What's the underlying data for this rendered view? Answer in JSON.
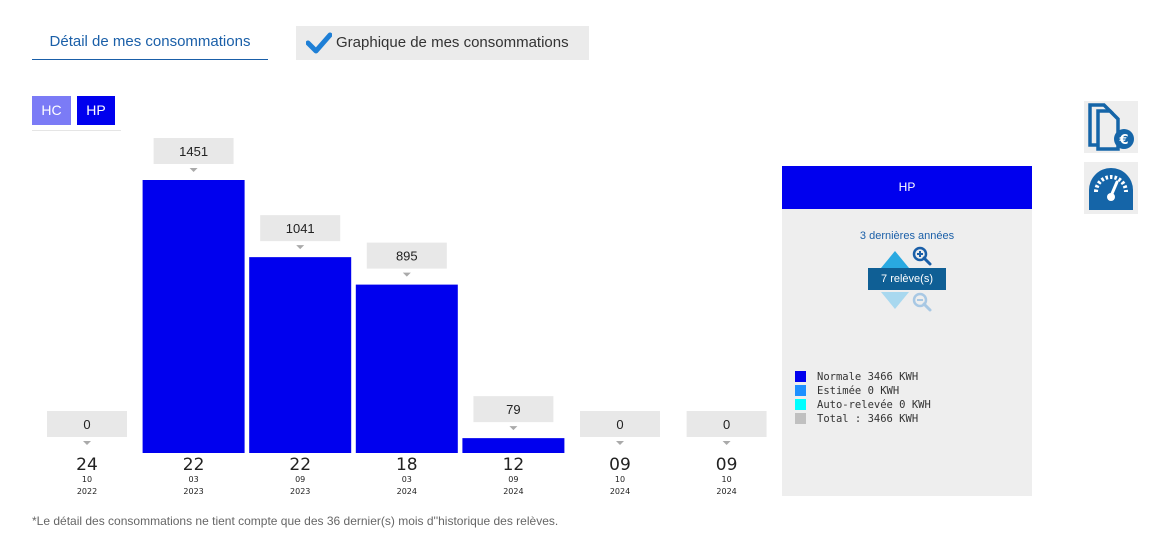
{
  "tabs": {
    "detail_label": "Détail de mes consommations",
    "graph_label": "Graphique de mes consommations"
  },
  "toggles": {
    "hc_label": "HC",
    "hp_label": "HP"
  },
  "colors": {
    "accent_blue": "#1a5fa8",
    "bar_blue": "#0000ee",
    "hc_purple": "#7b7bf6",
    "estimee": "#1e90ff",
    "auto_relevee": "#00ffff",
    "total_grey": "#c0c0c0"
  },
  "chart_data": {
    "type": "bar",
    "categories": [
      {
        "day": "24",
        "month": "10",
        "year": "2022"
      },
      {
        "day": "22",
        "month": "03",
        "year": "2023"
      },
      {
        "day": "22",
        "month": "09",
        "year": "2023"
      },
      {
        "day": "18",
        "month": "03",
        "year": "2024"
      },
      {
        "day": "12",
        "month": "09",
        "year": "2024"
      },
      {
        "day": "09",
        "month": "10",
        "year": "2024"
      },
      {
        "day": "09",
        "month": "10",
        "year": "2024"
      }
    ],
    "values": [
      0,
      1451,
      1041,
      895,
      79,
      0,
      0
    ],
    "ylim": [
      0,
      1451
    ],
    "grid": false
  },
  "panel": {
    "header": "HP",
    "period_label": "3 dernières années",
    "releves_label": "7 relève(s)",
    "legend": [
      {
        "label": "Normale 3466 KWH",
        "color": "#0000ee"
      },
      {
        "label": "Estimée 0 KWH",
        "color": "#1e90ff"
      },
      {
        "label": "Auto-relevée 0 KWH",
        "color": "#00ffff"
      },
      {
        "label": "Total : 3466 KWH",
        "color": "#c0c0c0"
      }
    ]
  },
  "side_icons": [
    "bill-euro-icon",
    "meter-gauge-icon"
  ],
  "footnote": "*Le détail des consommations ne tient compte que des 36 dernier(s) mois d''historique des relèves."
}
